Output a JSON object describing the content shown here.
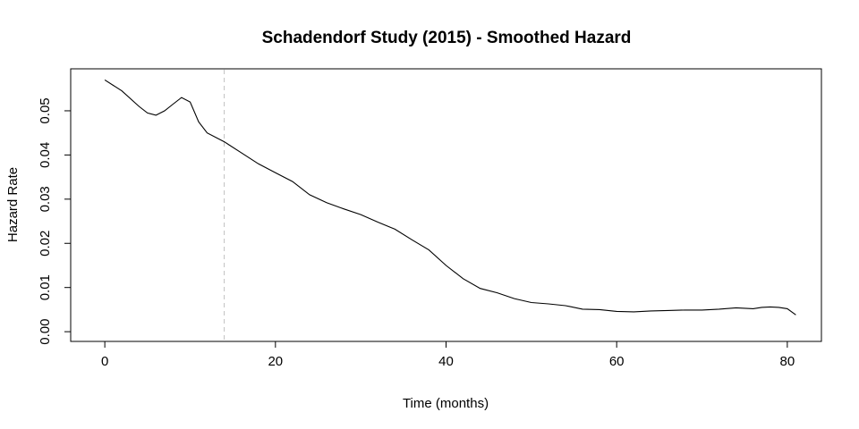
{
  "chart_data": {
    "type": "line",
    "title": "Schadendorf Study (2015) -  Smoothed Hazard",
    "xlabel": "Time (months)",
    "ylabel": "Hazard Rate",
    "xlim": [
      -4,
      84
    ],
    "ylim": [
      -0.0022,
      0.0595
    ],
    "x_ticks": [
      0,
      20,
      40,
      60,
      80
    ],
    "y_ticks": [
      0.0,
      0.01,
      0.02,
      0.03,
      0.04,
      0.05
    ],
    "x_tick_labels": [
      "0",
      "20",
      "40",
      "60",
      "80"
    ],
    "y_tick_labels": [
      "0.00",
      "0.01",
      "0.02",
      "0.03",
      "0.04",
      "0.05"
    ],
    "grid": false,
    "reference_line": {
      "x": 14,
      "style": "dashed",
      "color": "#bfbfbf"
    },
    "line_color": "#000000",
    "series": [
      {
        "x": [
          0,
          2,
          4,
          5,
          6,
          7,
          8,
          9,
          10,
          11,
          12,
          14,
          16,
          18,
          20,
          22,
          24,
          26,
          28,
          30,
          32,
          34,
          36,
          38,
          40,
          42,
          44,
          46,
          48,
          50,
          52,
          54,
          56,
          58,
          60,
          62,
          64,
          66,
          68,
          70,
          72,
          74,
          76,
          77,
          78,
          79,
          80,
          81
        ],
        "y": [
          0.057,
          0.0545,
          0.051,
          0.0495,
          0.049,
          0.05,
          0.0515,
          0.053,
          0.052,
          0.0475,
          0.045,
          0.043,
          0.0405,
          0.038,
          0.036,
          0.034,
          0.031,
          0.0292,
          0.0278,
          0.0265,
          0.0248,
          0.0232,
          0.0208,
          0.0185,
          0.015,
          0.012,
          0.0098,
          0.0088,
          0.0075,
          0.0066,
          0.0063,
          0.0059,
          0.0051,
          0.005,
          0.0046,
          0.0045,
          0.0047,
          0.0048,
          0.0049,
          0.0049,
          0.0051,
          0.0054,
          0.0052,
          0.0055,
          0.0056,
          0.0055,
          0.0052,
          0.0038
        ]
      }
    ]
  }
}
